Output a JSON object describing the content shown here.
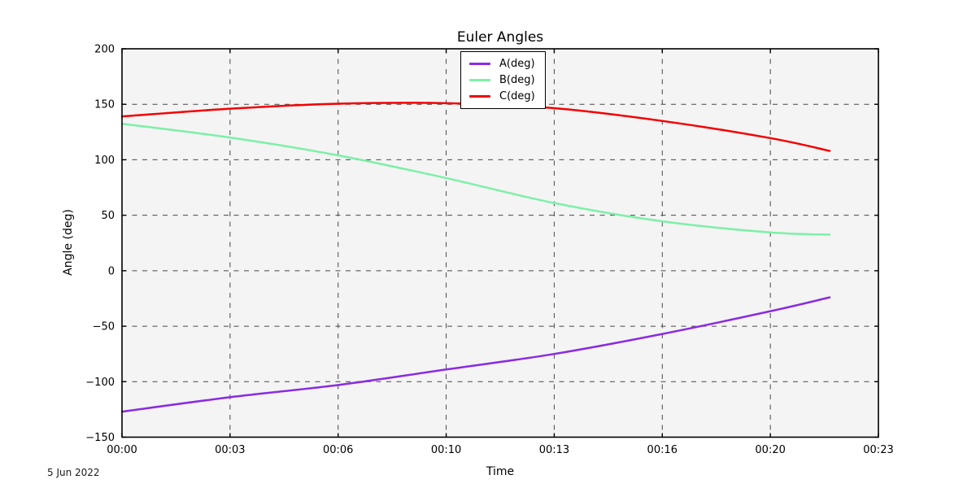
{
  "chart_data": {
    "type": "line",
    "title": "Euler Angles",
    "xlabel": "Time",
    "ylabel": "Angle (deg)",
    "date_annotation": "5 Jun 2022",
    "plot_background": "#f4f4f4",
    "grid": {
      "visible": true,
      "style": "dashed",
      "color": "#474747"
    },
    "legend": {
      "position": "top-center",
      "entries": [
        "A(deg)",
        "B(deg)",
        "C(deg)"
      ]
    },
    "ylim": [
      -150,
      200
    ],
    "y_ticks": [
      200,
      150,
      100,
      50,
      0,
      -50,
      -100,
      -150
    ],
    "xlim_minutes": [
      0,
      23.3333
    ],
    "x_ticks": [
      {
        "minutes": 0,
        "label": "00:00"
      },
      {
        "minutes": 3.3333,
        "label": "00:03"
      },
      {
        "minutes": 6.6667,
        "label": "00:06"
      },
      {
        "minutes": 10,
        "label": "00:10"
      },
      {
        "minutes": 13.3333,
        "label": "00:13"
      },
      {
        "minutes": 16.6667,
        "label": "00:16"
      },
      {
        "minutes": 20,
        "label": "00:20"
      },
      {
        "minutes": 23.3333,
        "label": "00:23"
      }
    ],
    "x_minutes": [
      0,
      3.3333,
      6.6667,
      10,
      13.3333,
      16.6667,
      20,
      21.83
    ],
    "series": [
      {
        "name": "A(deg)",
        "color": "#8a2be2",
        "values": [
          -127,
          -114,
          -103,
          -89,
          -75,
          -57,
          -36.5,
          -24
        ]
      },
      {
        "name": "B(deg)",
        "color": "#7df0a8",
        "values": [
          132.5,
          120,
          104,
          83.5,
          61,
          44.5,
          34.5,
          32.5
        ]
      },
      {
        "name": "C(deg)",
        "color": "#f50000",
        "values": [
          139,
          146,
          150.5,
          151,
          146.5,
          135,
          119.5,
          108
        ]
      }
    ]
  }
}
